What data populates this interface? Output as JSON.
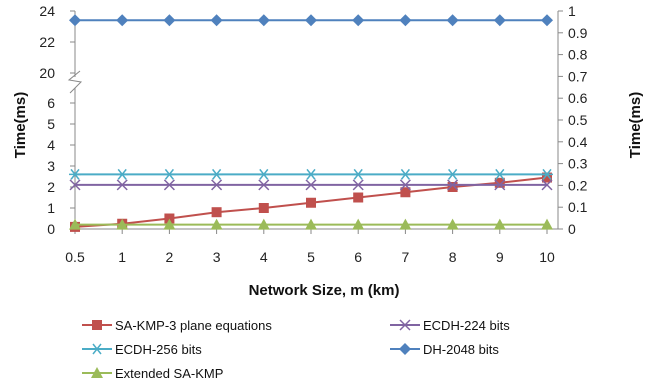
{
  "chart_data": {
    "type": "line",
    "xlabel": "Network Size, m (km)",
    "ylabel_left": "Time(ms)",
    "ylabel_right": "Time(ms)",
    "x": [
      0.5,
      1,
      2,
      3,
      4,
      5,
      6,
      7,
      8,
      9,
      10
    ],
    "x_ticks": [
      "0.5",
      "1",
      "2",
      "3",
      "4",
      "5",
      "6",
      "7",
      "8",
      "9",
      "10"
    ],
    "left_axis": {
      "ticks": [
        "0",
        "1",
        "2",
        "3",
        "4",
        "5",
        "6",
        "20",
        "22",
        "24"
      ],
      "broken": true,
      "break_between": [
        6,
        20
      ]
    },
    "right_axis": {
      "ylim": [
        0,
        1
      ],
      "ticks": [
        "0",
        "0.1",
        "0.2",
        "0.3",
        "0.4",
        "0.5",
        "0.6",
        "0.7",
        "0.8",
        "0.9",
        "1"
      ]
    },
    "grid": false,
    "legend_position": "bottom",
    "series": [
      {
        "name": "SA-KMP-3 plane equations",
        "axis": "left",
        "color": "#C0504D",
        "marker": "square",
        "values": [
          0.1,
          0.25,
          0.5,
          0.8,
          1.0,
          1.25,
          1.5,
          1.75,
          2.0,
          2.2,
          2.45
        ]
      },
      {
        "name": "ECDH-224 bits",
        "axis": "left",
        "color": "#8064A2",
        "marker": "x",
        "values": [
          2.1,
          2.1,
          2.1,
          2.1,
          2.1,
          2.1,
          2.1,
          2.1,
          2.1,
          2.1,
          2.1
        ]
      },
      {
        "name": "ECDH-256 bits",
        "axis": "left",
        "color": "#4BACC6",
        "marker": "asterisk",
        "values": [
          2.6,
          2.6,
          2.6,
          2.6,
          2.6,
          2.6,
          2.6,
          2.6,
          2.6,
          2.6,
          2.6
        ]
      },
      {
        "name": "DH-2048 bits",
        "axis": "left",
        "color": "#4F81BD",
        "marker": "diamond",
        "values": [
          23.4,
          23.4,
          23.4,
          23.4,
          23.4,
          23.4,
          23.4,
          23.4,
          23.4,
          23.4,
          23.4
        ]
      },
      {
        "name": "Extended SA-KMP",
        "axis": "right",
        "color": "#9BBB59",
        "marker": "triangle",
        "values": [
          0.02,
          0.02,
          0.02,
          0.02,
          0.02,
          0.02,
          0.02,
          0.02,
          0.02,
          0.02,
          0.02
        ]
      }
    ]
  }
}
